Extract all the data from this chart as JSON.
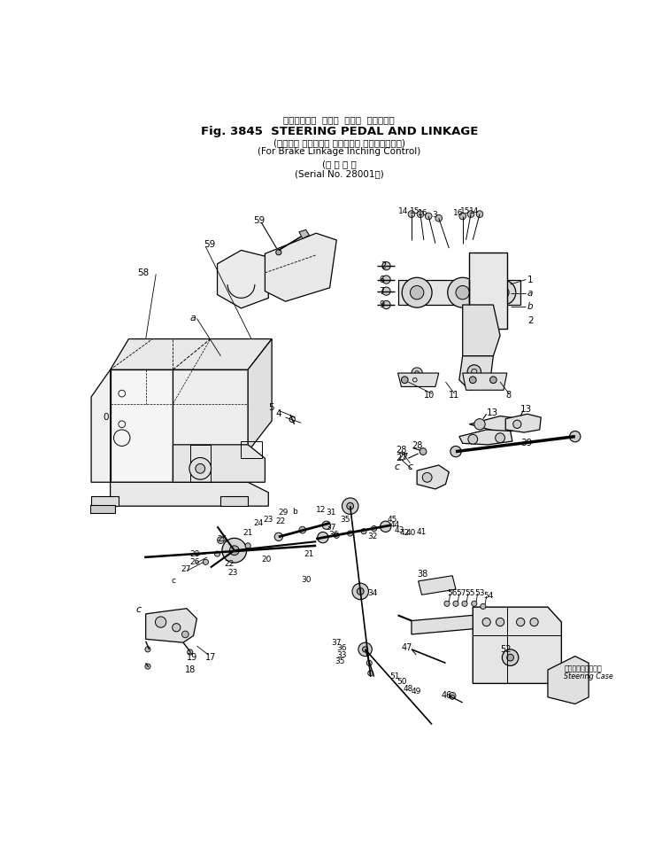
{
  "bg_color": "#ffffff",
  "lc": "#000000",
  "title1": "ステアリング  ペダル  および  リンケージ",
  "title2": "Fig. 3845  STEERING PEDAL AND LINKAGE",
  "title3": "(ブレーキ リンケージ インチング コントロール用)",
  "title4": "(For Brake Linkage Inching Control)",
  "title5": "(適 用 号 機",
  "title6": "(Serial No. 28001～)",
  "fig_w": 748,
  "fig_h": 974
}
